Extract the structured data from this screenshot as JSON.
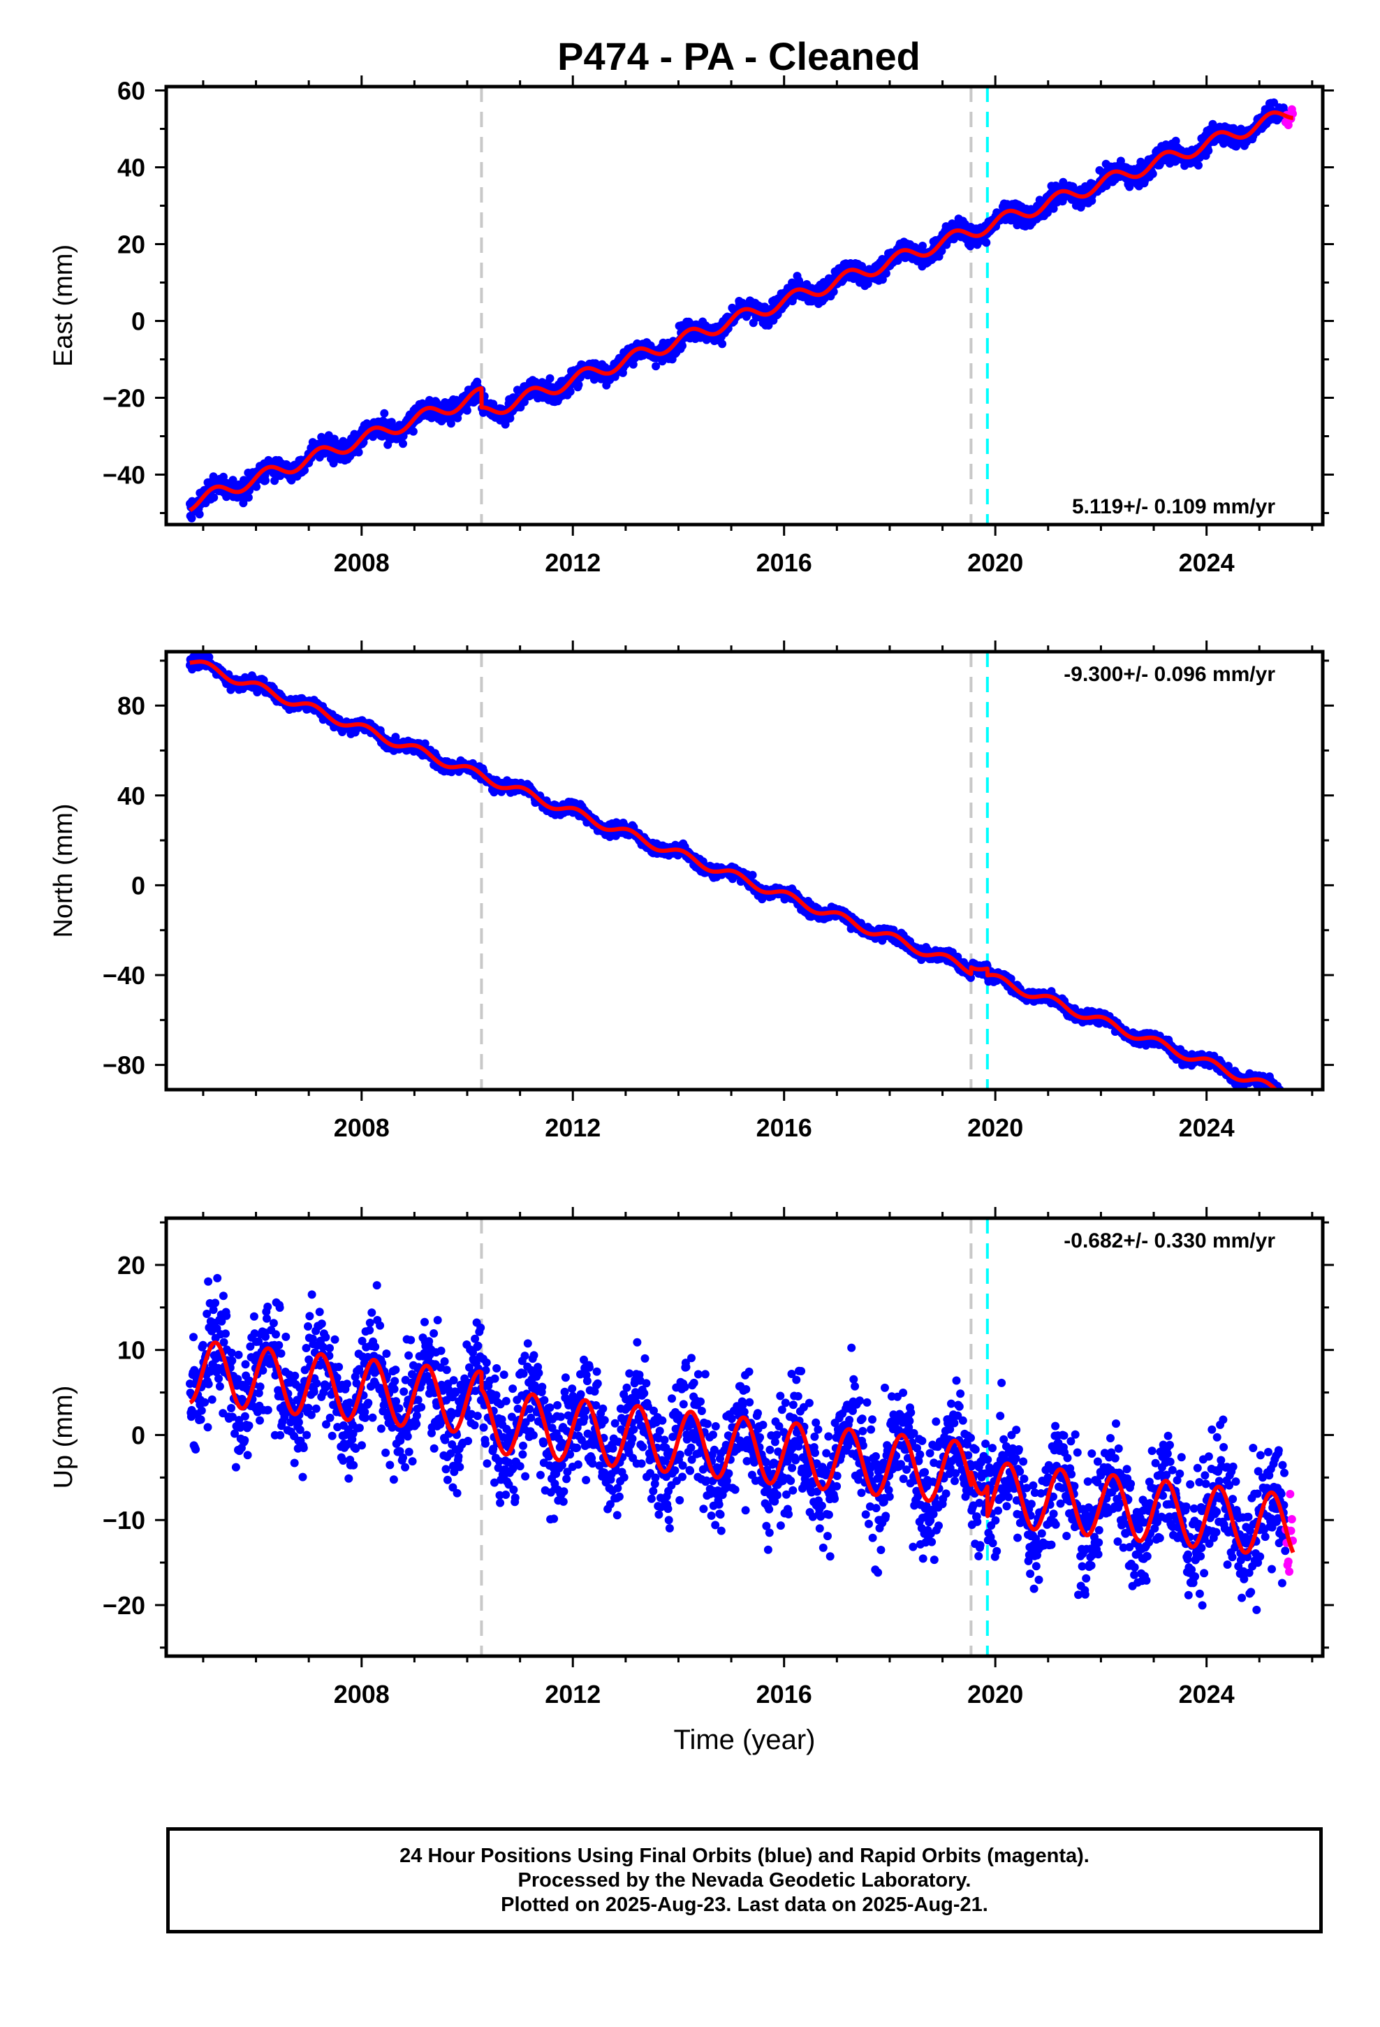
{
  "title": "P474  - PA - Cleaned",
  "footer": {
    "line1": "24 Hour Positions Using Final Orbits (blue) and Rapid Orbits (magenta).",
    "line2": "Processed by the Nevada Geodetic Laboratory.",
    "line3": "Plotted on 2025-Aug-23. Last data on 2025-Aug-21."
  },
  "colors": {
    "final_orbits": "#0000ff",
    "rapid_orbits": "#ff00ff",
    "model": "#ff0000",
    "equipment_change": "#c8c8c8",
    "earthquake": "#00ffff"
  },
  "chart_data": [
    {
      "type": "scatter",
      "ylabel": "East (mm)",
      "xlabel": "",
      "xlim": [
        2004.3,
        2026.2
      ],
      "ylim": [
        -53,
        61
      ],
      "x_ticks": [
        2008,
        2012,
        2016,
        2020,
        2024
      ],
      "y_ticks": [
        -40,
        -20,
        0,
        20,
        40,
        60
      ],
      "rate_label": "5.119+/- 0.109 mm/yr",
      "rate_position": "bottom-right",
      "data_start": 2004.75,
      "data_end": 2025.64,
      "rapid_start": 2025.5,
      "model": {
        "rate": 5.119,
        "ref_value": -47.5,
        "seasonal_amp": 1.8,
        "phase": 0.2,
        "offsets": [
          {
            "t": 2010.27,
            "dy": -5.0
          }
        ]
      },
      "scatter_sd": 1.3,
      "vlines_gray": [
        2010.27,
        2019.54
      ],
      "vlines_cyan": [
        2019.85
      ],
      "grid": false
    },
    {
      "type": "scatter",
      "ylabel": "North (mm)",
      "xlabel": "",
      "xlim": [
        2004.3,
        2026.2
      ],
      "ylim": [
        -91,
        104
      ],
      "x_ticks": [
        2008,
        2012,
        2016,
        2020,
        2024
      ],
      "y_ticks": [
        -80,
        -40,
        0,
        40,
        80
      ],
      "rate_label": "-9.300+/- 0.096 mm/yr",
      "rate_position": "top-right",
      "data_start": 2004.75,
      "data_end": 2025.64,
      "rapid_start": 2025.5,
      "model": {
        "rate": -9.3,
        "ref_value": 100.0,
        "seasonal_amp": 2.0,
        "phase": 1.1,
        "offsets": [
          {
            "t": 2019.54,
            "dy": 3.0
          },
          {
            "t": 2019.85,
            "dy": -3.0
          }
        ]
      },
      "scatter_sd": 1.3,
      "vlines_gray": [
        2010.27,
        2019.54
      ],
      "vlines_cyan": [
        2019.85
      ],
      "grid": false
    },
    {
      "type": "scatter",
      "ylabel": "Up (mm)",
      "xlabel": "Time (year)",
      "xlim": [
        2004.3,
        2026.2
      ],
      "ylim": [
        -26,
        25.5
      ],
      "x_ticks": [
        2008,
        2012,
        2016,
        2020,
        2024
      ],
      "y_ticks": [
        -20,
        -10,
        0,
        10,
        20
      ],
      "rate_label": "-0.682+/- 0.330 mm/yr",
      "rate_position": "top-right",
      "data_start": 2004.75,
      "data_end": 2025.64,
      "rapid_start": 2025.5,
      "model": {
        "rate": -0.682,
        "ref_value": 7.5,
        "seasonal_amp": 3.7,
        "phase": 0.1,
        "offsets": [
          {
            "t": 2010.27,
            "dy": -2.0
          },
          {
            "t": 2019.54,
            "dy": 1.5
          },
          {
            "t": 2019.85,
            "dy": -3.5
          }
        ]
      },
      "scatter_sd": 3.4,
      "vlines_gray": [
        2010.27,
        2019.54
      ],
      "vlines_cyan": [
        2019.85
      ],
      "grid": false
    }
  ]
}
